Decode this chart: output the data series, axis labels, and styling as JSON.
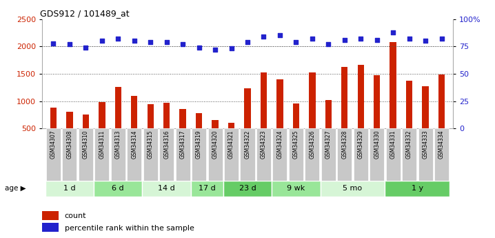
{
  "title": "GDS912 / 101489_at",
  "samples": [
    "GSM34307",
    "GSM34308",
    "GSM34310",
    "GSM34311",
    "GSM34313",
    "GSM34314",
    "GSM34315",
    "GSM34316",
    "GSM34317",
    "GSM34319",
    "GSM34320",
    "GSM34321",
    "GSM34322",
    "GSM34323",
    "GSM34324",
    "GSM34325",
    "GSM34326",
    "GSM34327",
    "GSM34328",
    "GSM34329",
    "GSM34330",
    "GSM34331",
    "GSM34332",
    "GSM34333",
    "GSM34334"
  ],
  "counts": [
    880,
    800,
    760,
    980,
    1260,
    1100,
    950,
    970,
    860,
    780,
    650,
    600,
    1240,
    1530,
    1400,
    960,
    1530,
    1020,
    1620,
    1660,
    1480,
    2080,
    1370,
    1270,
    1490
  ],
  "percentiles": [
    78,
    77,
    74,
    80,
    82,
    80,
    79,
    79,
    77,
    74,
    72,
    73,
    79,
    84,
    85,
    79,
    82,
    77,
    81,
    82,
    81,
    88,
    82,
    80,
    82
  ],
  "age_groups": [
    {
      "label": "1 d",
      "start": 0,
      "end": 3,
      "color": "#d6f5d6"
    },
    {
      "label": "6 d",
      "start": 3,
      "end": 6,
      "color": "#99e699"
    },
    {
      "label": "14 d",
      "start": 6,
      "end": 9,
      "color": "#d6f5d6"
    },
    {
      "label": "17 d",
      "start": 9,
      "end": 11,
      "color": "#99e699"
    },
    {
      "label": "23 d",
      "start": 11,
      "end": 14,
      "color": "#66cc66"
    },
    {
      "label": "9 wk",
      "start": 14,
      "end": 17,
      "color": "#99e699"
    },
    {
      "label": "5 mo",
      "start": 17,
      "end": 21,
      "color": "#d6f5d6"
    },
    {
      "label": "1 y",
      "start": 21,
      "end": 25,
      "color": "#66cc66"
    }
  ],
  "bar_color": "#cc2200",
  "dot_color": "#2222cc",
  "ylim_left": [
    500,
    2500
  ],
  "ylim_right": [
    0,
    100
  ],
  "yticks_left": [
    500,
    1000,
    1500,
    2000,
    2500
  ],
  "yticks_right": [
    0,
    25,
    50,
    75,
    100
  ],
  "yticklabels_right": [
    "0",
    "25",
    "50",
    "75",
    "100%"
  ],
  "grid_values": [
    1000,
    1500,
    2000
  ],
  "plot_bg": "#ffffff",
  "xtick_bg": "#cccccc",
  "legend_count_color": "#cc2200",
  "legend_pct_color": "#2222cc"
}
